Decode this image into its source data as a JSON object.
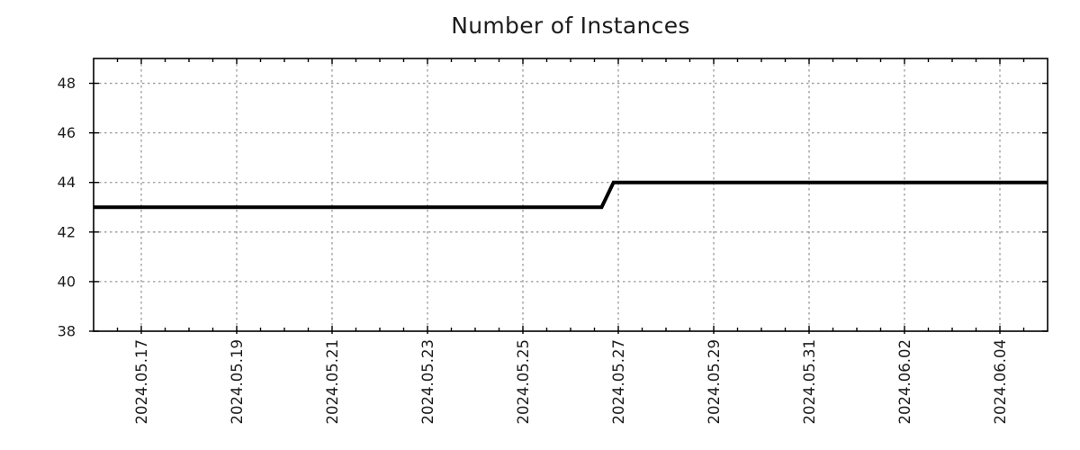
{
  "page": {
    "background": "#ffffff"
  },
  "chart_data": {
    "type": "line",
    "title": "Number of Instances",
    "x_axis": {
      "tick_labels": [
        "2024.05.17",
        "2024.05.19",
        "2024.05.21",
        "2024.05.23",
        "2024.05.25",
        "2024.05.27",
        "2024.05.29",
        "2024.05.31",
        "2024.06.02",
        "2024.06.04"
      ],
      "tick_positions_days": [
        1,
        3,
        5,
        7,
        9,
        11,
        13,
        15,
        17,
        19
      ],
      "minor_tick_interval_days": 0.5,
      "range_days": [
        0,
        20
      ],
      "origin_date": "2024.05.16"
    },
    "y_axis": {
      "tick_labels": [
        "38",
        "40",
        "42",
        "44",
        "46",
        "48"
      ],
      "tick_values": [
        38,
        40,
        42,
        44,
        46,
        48
      ],
      "range": [
        38,
        49
      ]
    },
    "grid": {
      "show": true,
      "style": "dotted",
      "color": "#999999"
    },
    "legend_position": "none",
    "series": [
      {
        "name": "Number of Instances",
        "color": "#000000",
        "line_width": 4,
        "points": [
          {
            "day": 0,
            "value": 43,
            "date": "2024.05.16 00:00"
          },
          {
            "day": 10.65,
            "value": 43,
            "date": "2024.05.26 15:30"
          },
          {
            "day": 10.9,
            "value": 44,
            "date": "2024.05.26 21:30"
          },
          {
            "day": 20,
            "value": 44,
            "date": "2024.06.05 00:00"
          }
        ]
      }
    ],
    "text_color": "#1c1c1c",
    "axis_color": "#000000"
  }
}
